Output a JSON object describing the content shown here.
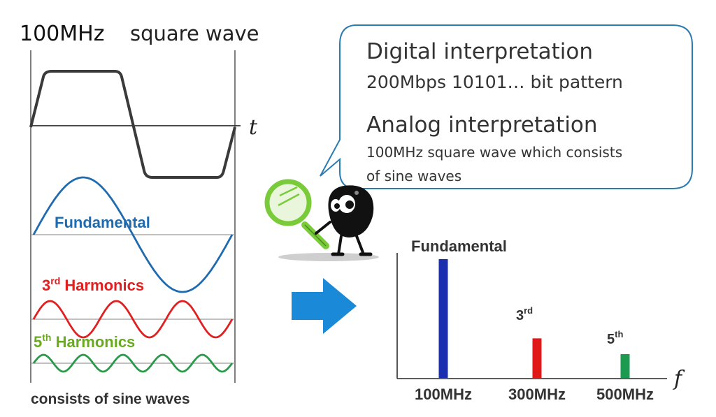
{
  "left_panel": {
    "freq_label": "100MHz",
    "wave_label": "square wave",
    "time_axis_label": "t",
    "fundamental_label": "Fundamental",
    "third": {
      "num": "3",
      "sup": "rd",
      "word": " Harmonics"
    },
    "fifth": {
      "num": "5",
      "sup": "th",
      "word": " Harmonics"
    },
    "footer": "consists of sine waves"
  },
  "callout": {
    "digital_title": "Digital interpretation",
    "digital_detail": "200Mbps 10101… bit pattern",
    "analog_title": "Analog interpretation",
    "analog_detail_line1": "100MHz square wave which consists",
    "analog_detail_line2": "of sine waves"
  },
  "spectrum": {
    "top_label": "Fundamental",
    "third_label": {
      "num": "3",
      "sup": "rd"
    },
    "fifth_label": {
      "num": "5",
      "sup": "th"
    },
    "freq_axis_label": "f",
    "tick_labels": [
      "100MHz",
      "300MHz",
      "500MHz"
    ]
  },
  "colors": {
    "square_wave": "#3a3a3a",
    "fundamental": "#1f6bb0",
    "third": "#e02020",
    "fifth": "#2a9a4a",
    "bar_fund": "#1a2fb0",
    "bar_third": "#e01818",
    "bar_fifth": "#1e9a50",
    "arrow": "#1a8ad8",
    "callout_border": "#2a7bb0",
    "harmonic5_label": "#6aaa1e"
  },
  "chart_data": {
    "type": "bar",
    "categories": [
      "100MHz",
      "300MHz",
      "500MHz"
    ],
    "values": [
      1,
      0.333,
      0.2
    ],
    "title": "",
    "xlabel": "f",
    "ylabel": ""
  },
  "icons": [
    "magnifier-mascot-icon",
    "right-arrow-icon"
  ]
}
